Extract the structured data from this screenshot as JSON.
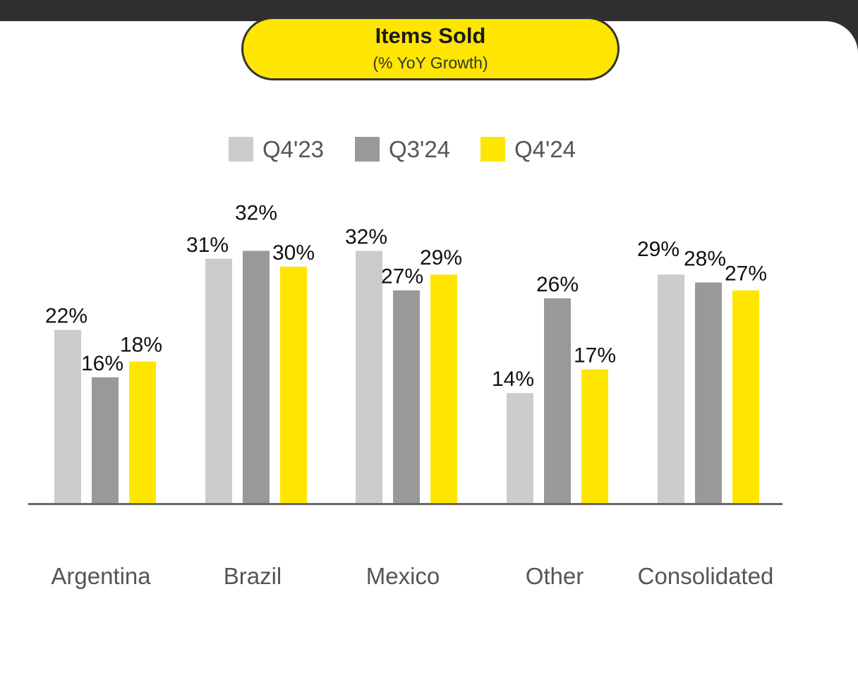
{
  "title": "Items Sold",
  "subtitle": "(% YoY Growth)",
  "colors": {
    "background": "#ffffff",
    "top_band": "#2f2f2f",
    "title_pill": "#ffe600",
    "baseline": "#666666"
  },
  "chart_data": {
    "type": "bar",
    "categories": [
      "Argentina",
      "Brazil",
      "Mexico",
      "Other",
      "Consolidated"
    ],
    "series": [
      {
        "name": "Q4'23",
        "color": "#cccccc",
        "values": [
          22,
          31,
          32,
          14,
          29
        ]
      },
      {
        "name": "Q3'24",
        "color": "#999999",
        "values": [
          16,
          32,
          27,
          26,
          28
        ]
      },
      {
        "name": "Q4'24",
        "color": "#ffe600",
        "values": [
          18,
          30,
          29,
          17,
          27
        ]
      }
    ],
    "value_labels": [
      [
        "22%",
        "31%",
        "32%",
        "14%",
        "29%"
      ],
      [
        "16%",
        "32%",
        "27%",
        "26%",
        "28%"
      ],
      [
        "18%",
        "30%",
        "29%",
        "17%",
        "27%"
      ]
    ],
    "legend_position": "top",
    "grid": false,
    "xlabel": "",
    "ylabel": ""
  }
}
